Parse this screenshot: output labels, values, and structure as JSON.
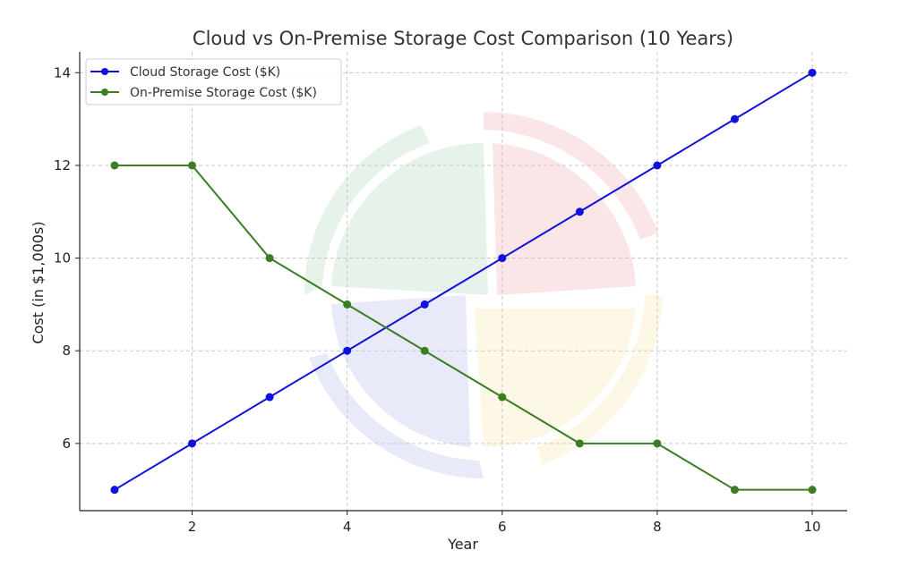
{
  "chart_data": {
    "type": "line",
    "title": "Cloud vs On-Premise Storage Cost Comparison (10 Years)",
    "xlabel": "Year",
    "ylabel": "Cost (in $1,000s)",
    "x": [
      1,
      2,
      3,
      4,
      5,
      6,
      7,
      8,
      9,
      10
    ],
    "xticks": [
      "2",
      "4",
      "6",
      "8",
      "10"
    ],
    "yticks": [
      "6",
      "8",
      "10",
      "12",
      "14"
    ],
    "xlim": [
      0.55,
      10.45
    ],
    "ylim": [
      4.55,
      14.45
    ],
    "grid": true,
    "legend_position": "top-left",
    "series": [
      {
        "name": "Cloud Storage Cost ($K)",
        "color": "#1111dd",
        "values": [
          5,
          6,
          7,
          8,
          9,
          10,
          11,
          12,
          13,
          14
        ]
      },
      {
        "name": "On-Premise Storage Cost ($K)",
        "color": "#3a7d22",
        "values": [
          12,
          12,
          10,
          9,
          8,
          7,
          6,
          6,
          5,
          5
        ]
      }
    ]
  }
}
